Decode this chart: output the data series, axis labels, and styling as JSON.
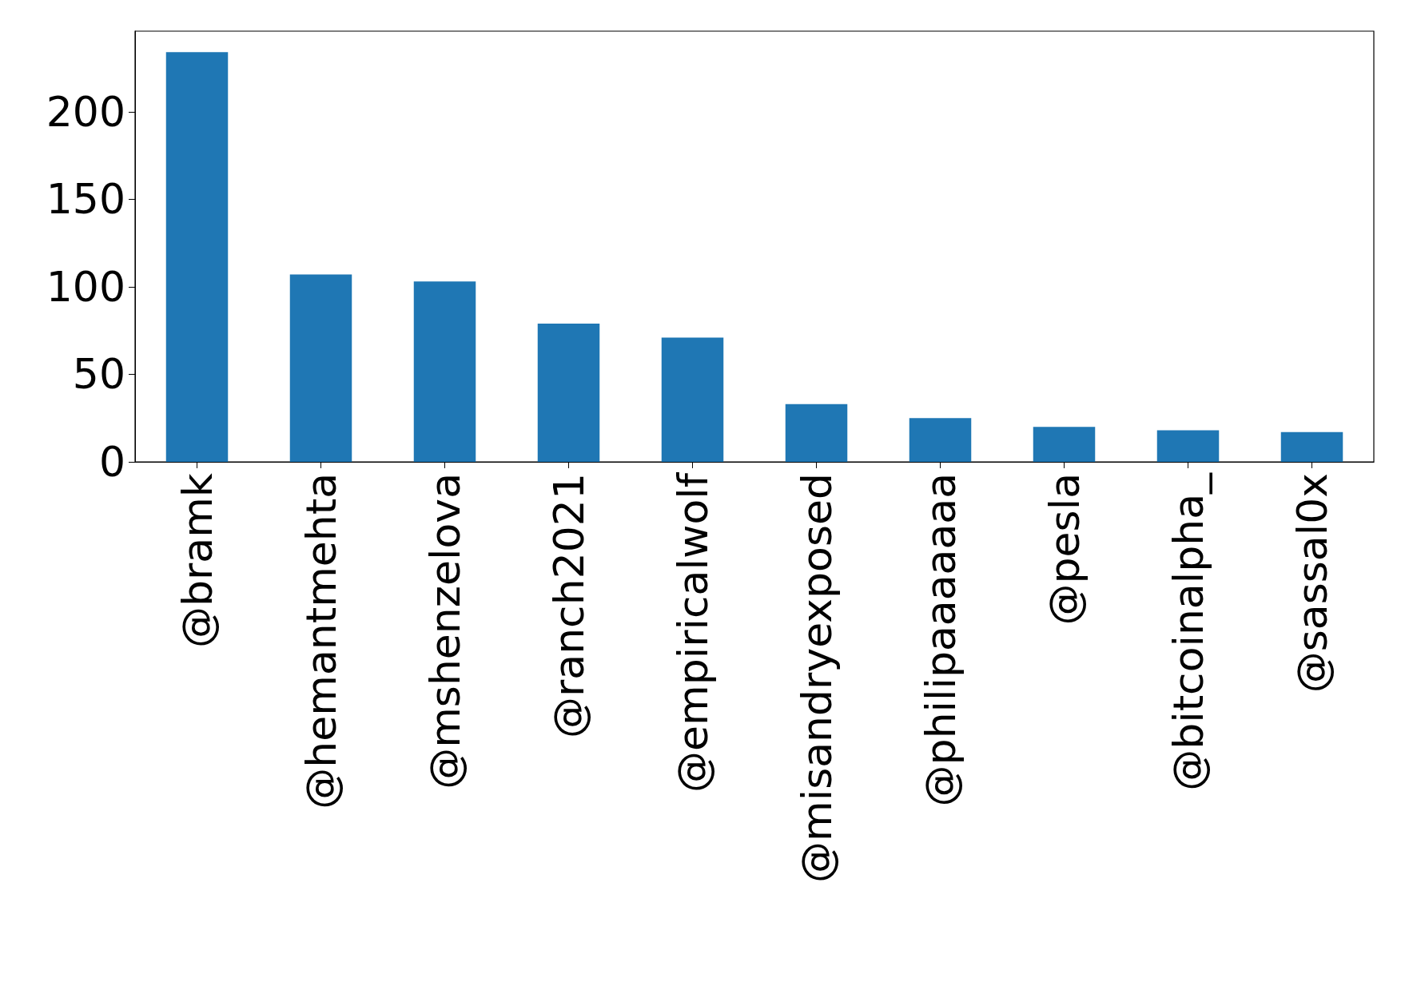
{
  "chart_data": {
    "type": "bar",
    "categories": [
      "@bramk",
      "@hemantmehta",
      "@mshenzelova",
      "@ranch2021",
      "@empiricalwolf",
      "@misandryexposed",
      "@philipaaaaaaa",
      "@pesla",
      "@bitcoinalpha_",
      "@sassal0x"
    ],
    "values": [
      234,
      107,
      103,
      79,
      71,
      33,
      25,
      20,
      18,
      17
    ],
    "color": "#1f77b4",
    "ylim": [
      0,
      246
    ],
    "yticks": [
      0,
      50,
      100,
      150,
      200
    ],
    "grid": false
  }
}
